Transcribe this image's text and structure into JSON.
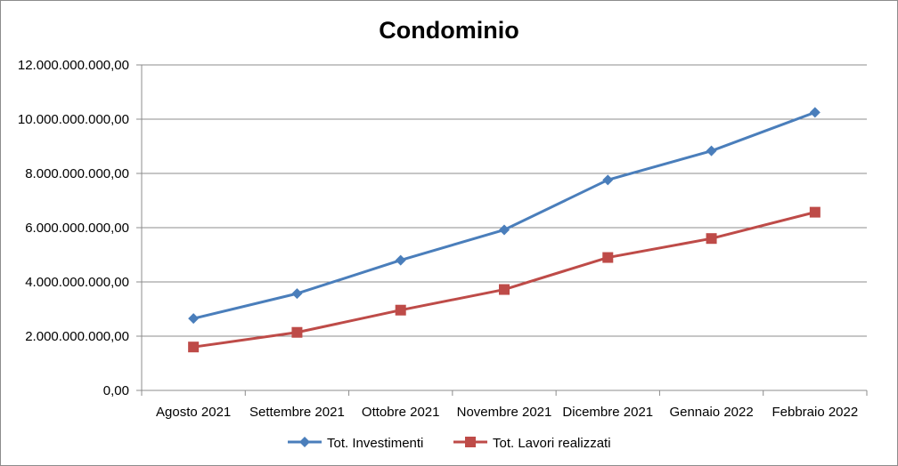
{
  "chart_data": {
    "type": "line",
    "title": "Condominio",
    "xlabel": "",
    "ylabel": "",
    "categories": [
      "Agosto 2021",
      "Settembre 2021",
      "Ottobre 2021",
      "Novembre 2021",
      "Dicembre 2021",
      "Gennaio 2022",
      "Febbraio 2022"
    ],
    "ylim": [
      0,
      12000000000
    ],
    "yticks": [
      0,
      2000000000,
      4000000000,
      6000000000,
      8000000000,
      10000000000,
      12000000000
    ],
    "ytick_labels": [
      "0,00",
      "2.000.000.000,00",
      "4.000.000.000,00",
      "6.000.000.000,00",
      "8.000.000.000,00",
      "10.000.000.000,00",
      "12.000.000.000,00"
    ],
    "grid": true,
    "legend_position": "bottom",
    "series": [
      {
        "name": "Tot. Investimenti",
        "color": "#4a7ebb",
        "marker": "diamond",
        "values": [
          2650000000,
          3570000000,
          4800000000,
          5920000000,
          7760000000,
          8830000000,
          10250000000
        ]
      },
      {
        "name": "Tot. Lavori realizzati",
        "color": "#be4b48",
        "marker": "square",
        "values": [
          1600000000,
          2140000000,
          2960000000,
          3720000000,
          4900000000,
          5600000000,
          6570000000
        ]
      }
    ]
  }
}
